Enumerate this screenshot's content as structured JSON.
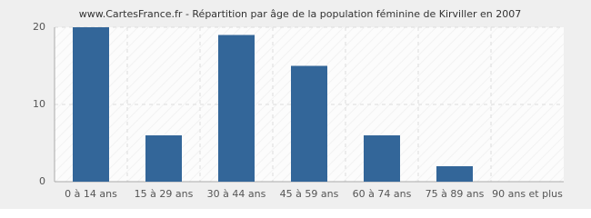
{
  "chart_data": {
    "type": "bar",
    "title": "www.CartesFrance.fr - Répartition par âge de la population féminine de Kirviller en 2007",
    "categories": [
      "0 à 14 ans",
      "15 à 29 ans",
      "30 à 44 ans",
      "45 à 59 ans",
      "60 à 74 ans",
      "75 à 89 ans",
      "90 ans et plus"
    ],
    "values": [
      20,
      6,
      19,
      15,
      6,
      2,
      0
    ],
    "color": "#336699",
    "ylim": [
      0,
      20
    ],
    "yticks": [
      0,
      10,
      20
    ],
    "grid": true
  }
}
